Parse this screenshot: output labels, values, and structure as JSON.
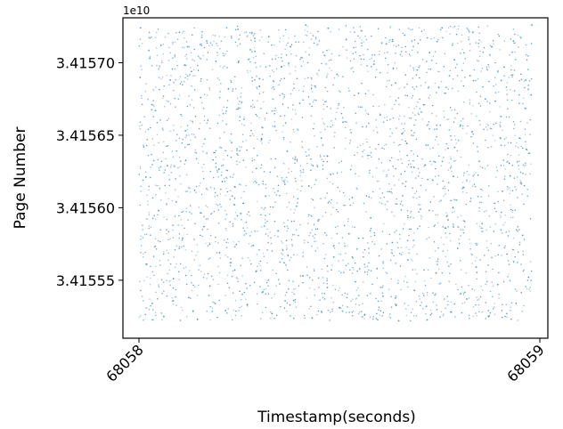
{
  "chart_data": {
    "type": "scatter",
    "title": "",
    "xlabel": "Timestamp(seconds)",
    "ylabel": "Page Number",
    "y_offset_label": "1e10",
    "xlim": [
      68057.96,
      68059.02
    ],
    "ylim": [
      34155100000.0,
      34157310000.0
    ],
    "x_ticks": [
      68058,
      68059
    ],
    "x_tick_labels": [
      "68058",
      "68059"
    ],
    "y_ticks": [
      34155500000.0,
      34156000000.0,
      34156500000.0,
      34157000000.0
    ],
    "y_tick_labels": [
      "3.41555",
      "3.41560",
      "3.41565",
      "3.41570"
    ],
    "grid": false,
    "point_color": "#1f77b4",
    "x_range_of_points": [
      68058.0,
      68058.98
    ],
    "y_range_of_points": [
      34155220000.0,
      34157260000.0
    ],
    "points": [
      [
        68058.004,
        34157240000.0
      ],
      [
        68058.012,
        34156420000.0
      ],
      [
        68058.018,
        34155610000.0
      ],
      [
        68058.027,
        34157030000.0
      ],
      [
        68058.033,
        34155340000.0
      ],
      [
        68058.041,
        34156670000.0
      ],
      [
        68058.049,
        34155980000.0
      ],
      [
        68058.055,
        34157120000.0
      ],
      [
        68058.062,
        34155250000.0
      ],
      [
        68058.071,
        34156290000.0
      ],
      [
        68058.078,
        34156880000.0
      ],
      [
        68058.086,
        34155510000.0
      ],
      [
        68058.093,
        34156040000.0
      ],
      [
        68058.101,
        34157210000.0
      ],
      [
        68058.109,
        34155790000.0
      ],
      [
        68058.116,
        34156530000.0
      ],
      [
        68058.124,
        34155380000.0
      ],
      [
        68058.131,
        34156940000.0
      ],
      [
        68058.139,
        34156120000.0
      ],
      [
        68058.146,
        34155230000.0
      ],
      [
        68058.154,
        34156760000.0
      ],
      [
        68058.162,
        34155870000.0
      ],
      [
        68058.169,
        34157150000.0
      ],
      [
        68058.177,
        34155460000.0
      ],
      [
        68058.185,
        34156330000.0
      ],
      [
        68058.192,
        34157010000.0
      ],
      [
        68058.201,
        34155690000.0
      ],
      [
        68058.208,
        34156180000.0
      ],
      [
        68058.216,
        34155290000.0
      ],
      [
        68058.223,
        34156820000.0
      ],
      [
        68058.231,
        34156450000.0
      ],
      [
        68058.239,
        34155570000.0
      ],
      [
        68058.247,
        34157230000.0
      ],
      [
        68058.254,
        34155960000.0
      ],
      [
        68058.262,
        34156610000.0
      ],
      [
        68058.27,
        34155330000.0
      ],
      [
        68058.278,
        34157090000.0
      ],
      [
        68058.285,
        34155740000.0
      ],
      [
        68058.293,
        34156270000.0
      ],
      [
        68058.301,
        34156890000.0
      ],
      [
        68058.309,
        34155420000.0
      ],
      [
        68058.316,
        34156080000.0
      ],
      [
        68058.324,
        34157180000.0
      ],
      [
        68058.332,
        34155270000.0
      ],
      [
        68058.339,
        34156560000.0
      ],
      [
        68058.347,
        34155840000.0
      ],
      [
        68058.355,
        34156970000.0
      ],
      [
        68058.362,
        34155620000.0
      ],
      [
        68058.37,
        34156390000.0
      ],
      [
        68058.378,
        34157110000.0
      ],
      [
        68058.386,
        34155360000.0
      ],
      [
        68058.393,
        34156010000.0
      ],
      [
        68058.401,
        34156720000.0
      ],
      [
        68058.409,
        34155530000.0
      ],
      [
        68058.416,
        34157260000.0
      ],
      [
        68058.424,
        34156150000.0
      ],
      [
        68058.432,
        34155240000.0
      ],
      [
        68058.439,
        34156840000.0
      ],
      [
        68058.447,
        34155910000.0
      ],
      [
        68058.455,
        34156480000.0
      ],
      [
        68058.463,
        34157050000.0
      ],
      [
        68058.47,
        34155450000.0
      ],
      [
        68058.478,
        34156230000.0
      ],
      [
        68058.486,
        34155660000.0
      ],
      [
        68058.494,
        34156920000.0
      ],
      [
        68058.501,
        34155310000.0
      ],
      [
        68058.509,
        34156590000.0
      ],
      [
        68058.517,
        34157160000.0
      ],
      [
        68058.524,
        34155820000.0
      ],
      [
        68058.532,
        34156070000.0
      ],
      [
        68058.54,
        34155490000.0
      ],
      [
        68058.548,
        34156790000.0
      ],
      [
        68058.555,
        34157220000.0
      ],
      [
        68058.563,
        34155260000.0
      ],
      [
        68058.571,
        34156360000.0
      ],
      [
        68058.578,
        34155930000.0
      ],
      [
        68058.586,
        34156990000.0
      ],
      [
        68058.594,
        34155580000.0
      ],
      [
        68058.602,
        34156640000.0
      ],
      [
        68058.609,
        34155390000.0
      ],
      [
        68058.617,
        34157130000.0
      ],
      [
        68058.625,
        34156110000.0
      ],
      [
        68058.632,
        34155760000.0
      ],
      [
        68058.64,
        34156860000.0
      ],
      [
        68058.648,
        34155220000.0
      ],
      [
        68058.656,
        34156510000.0
      ],
      [
        68058.663,
        34157190000.0
      ],
      [
        68058.671,
        34155640000.0
      ],
      [
        68058.679,
        34156280000.0
      ],
      [
        68058.687,
        34155430000.0
      ],
      [
        68058.694,
        34156950000.0
      ],
      [
        68058.702,
        34155990000.0
      ],
      [
        68058.71,
        34156710000.0
      ],
      [
        68058.717,
        34155320000.0
      ],
      [
        68058.725,
        34157070000.0
      ],
      [
        68058.733,
        34156190000.0
      ],
      [
        68058.741,
        34155550000.0
      ],
      [
        68058.748,
        34156830000.0
      ],
      [
        68058.756,
        34157240000.0
      ],
      [
        68058.764,
        34155860000.0
      ],
      [
        68058.771,
        34156410000.0
      ],
      [
        68058.779,
        34155280000.0
      ],
      [
        68058.787,
        34157020000.0
      ],
      [
        68058.795,
        34155720000.0
      ],
      [
        68058.802,
        34156570000.0
      ],
      [
        68058.81,
        34156140000.0
      ],
      [
        68058.818,
        34155370000.0
      ],
      [
        68058.826,
        34156910000.0
      ],
      [
        68058.833,
        34157210000.0
      ],
      [
        68058.841,
        34155590000.0
      ],
      [
        68058.849,
        34156320000.0
      ],
      [
        68058.856,
        34155890000.0
      ],
      [
        68058.864,
        34156750000.0
      ],
      [
        68058.872,
        34155250000.0
      ],
      [
        68058.88,
        34157110000.0
      ],
      [
        68058.887,
        34156030000.0
      ],
      [
        68058.895,
        34155470000.0
      ],
      [
        68058.903,
        34156630000.0
      ],
      [
        68058.911,
        34156970000.0
      ],
      [
        68058.918,
        34155680000.0
      ],
      [
        68058.926,
        34156220000.0
      ],
      [
        68058.934,
        34157150000.0
      ],
      [
        68058.941,
        34155340000.0
      ],
      [
        68058.949,
        34156480000.0
      ],
      [
        68058.957,
        34155810000.0
      ],
      [
        68058.965,
        34156880000.0
      ],
      [
        68058.972,
        34155520000.0
      ],
      [
        68058.98,
        34157260000.0
      ]
    ]
  }
}
